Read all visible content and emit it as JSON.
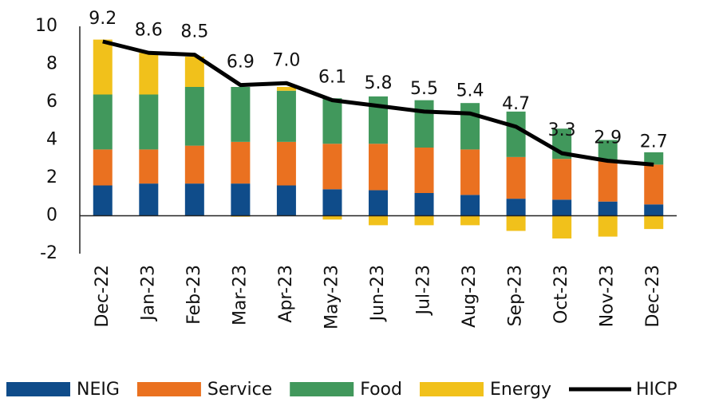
{
  "chart_data": {
    "type": "stacked_bar_line",
    "categories": [
      "Dec-22",
      "Jan-23",
      "Feb-23",
      "Mar-23",
      "Apr-23",
      "May-23",
      "Jun-23",
      "Jul-23",
      "Aug-23",
      "Sep-23",
      "Oct-23",
      "Nov-23",
      "Dec-23"
    ],
    "series": [
      {
        "name": "NEIG",
        "color": "#0f4c8a",
        "values": [
          1.6,
          1.7,
          1.7,
          1.7,
          1.6,
          1.4,
          1.35,
          1.2,
          1.1,
          0.9,
          0.85,
          0.75,
          0.6
        ]
      },
      {
        "name": "Service",
        "color": "#ea7120",
        "values": [
          1.9,
          1.8,
          2.0,
          2.2,
          2.3,
          2.4,
          2.45,
          2.4,
          2.4,
          2.2,
          2.15,
          2.2,
          2.1
        ]
      },
      {
        "name": "Food",
        "color": "#41985c",
        "values": [
          2.9,
          2.9,
          3.1,
          2.9,
          2.7,
          2.4,
          2.5,
          2.5,
          2.45,
          2.4,
          1.6,
          1.05,
          0.65
        ]
      },
      {
        "name": "Energy",
        "color": "#f1c11b",
        "values": [
          2.9,
          2.2,
          1.6,
          -0.05,
          0.2,
          -0.2,
          -0.5,
          -0.5,
          -0.5,
          -0.8,
          -1.2,
          -1.1,
          -0.7
        ]
      },
      {
        "name": "HICP",
        "color": "#000000",
        "kind": "line",
        "values": [
          9.2,
          8.6,
          8.5,
          6.9,
          7.0,
          6.1,
          5.8,
          5.5,
          5.4,
          4.7,
          3.3,
          2.9,
          2.7
        ],
        "value_labels": [
          "9.2",
          "8.6",
          "8.5",
          "6.9",
          "7.0",
          "6.1",
          "5.8",
          "5.5",
          "5.4",
          "4.7",
          "3.3",
          "2.9",
          "2.7"
        ]
      }
    ],
    "ylim": [
      -2,
      10
    ],
    "yticks": [
      -2,
      0,
      2,
      4,
      6,
      8,
      10
    ],
    "legend": "bottom"
  }
}
